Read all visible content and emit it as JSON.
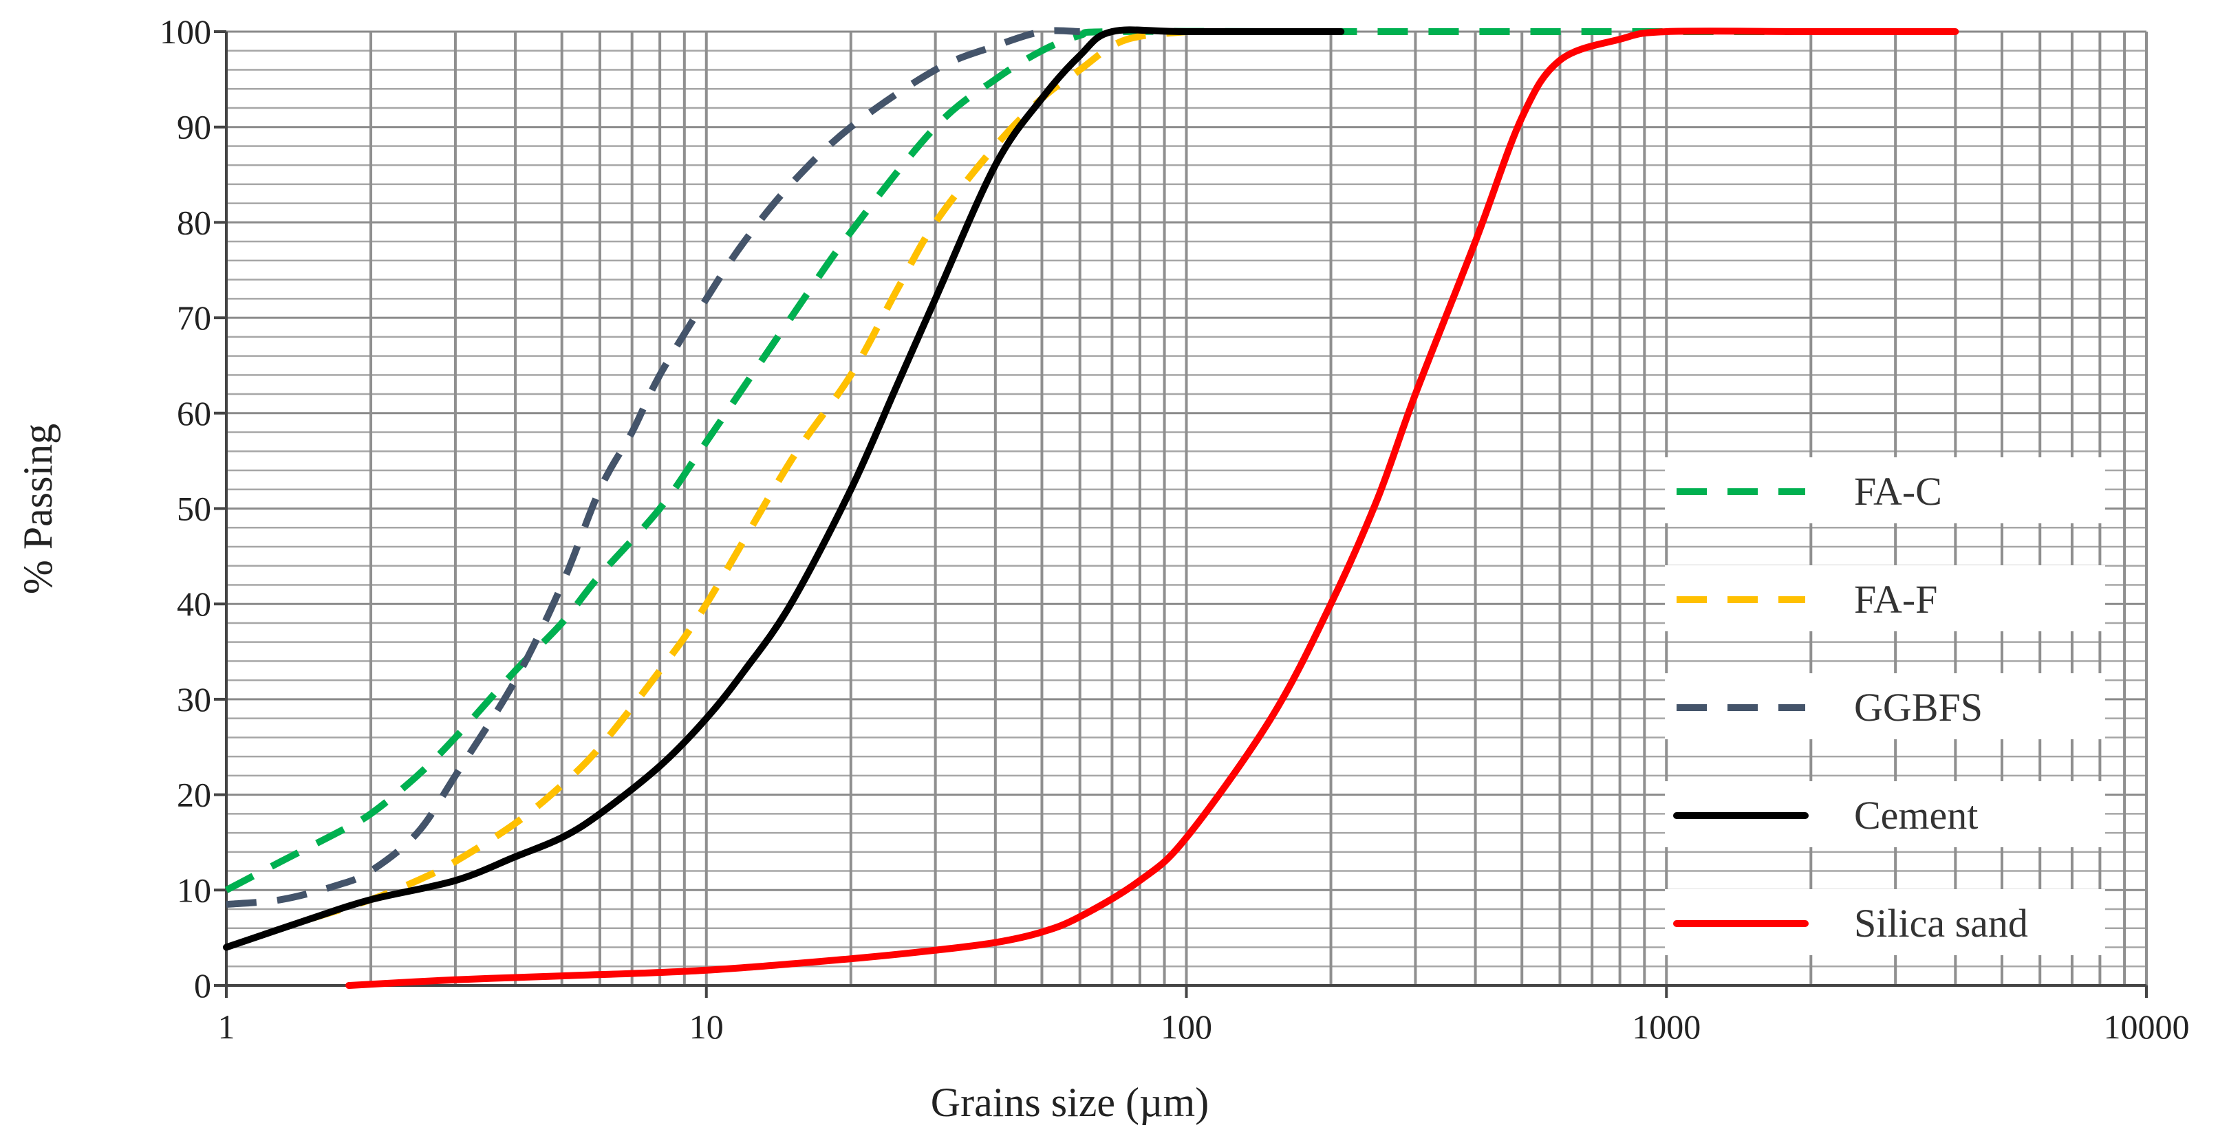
{
  "chart_data": {
    "type": "line",
    "title": "",
    "xlabel": "Grains size (µm)",
    "ylabel": "% Passing",
    "x_scale": "log",
    "xlim": [
      1,
      10000
    ],
    "ylim": [
      0,
      100
    ],
    "grid": true,
    "legend_position": "right",
    "x_ticks": [
      "1",
      "10",
      "100",
      "1000",
      "10000"
    ],
    "y_ticks": [
      "0",
      "10",
      "20",
      "30",
      "40",
      "50",
      "60",
      "70",
      "80",
      "90",
      "100"
    ],
    "series": [
      {
        "name": "FA-C",
        "color": "#00b050",
        "style": "dashed",
        "points": [
          [
            1,
            10
          ],
          [
            1.3,
            13
          ],
          [
            1.7,
            16
          ],
          [
            2,
            18
          ],
          [
            2.5,
            22
          ],
          [
            3,
            26
          ],
          [
            4,
            33
          ],
          [
            5,
            38
          ],
          [
            6,
            43
          ],
          [
            8,
            50
          ],
          [
            10,
            57
          ],
          [
            15,
            70
          ],
          [
            20,
            79
          ],
          [
            30,
            90
          ],
          [
            40,
            95
          ],
          [
            50,
            98
          ],
          [
            60,
            99.6
          ],
          [
            70,
            100
          ],
          [
            200,
            100
          ],
          [
            1000,
            100
          ],
          [
            2000,
            100
          ]
        ]
      },
      {
        "name": "FA-F",
        "color": "#ffc000",
        "style": "dashed",
        "points": [
          [
            1.5,
            7
          ],
          [
            2,
            9
          ],
          [
            2.5,
            11
          ],
          [
            3,
            13
          ],
          [
            4,
            17
          ],
          [
            5,
            21
          ],
          [
            6,
            25
          ],
          [
            8,
            33
          ],
          [
            10,
            40
          ],
          [
            15,
            55
          ],
          [
            20,
            64
          ],
          [
            25,
            73
          ],
          [
            30,
            80
          ],
          [
            40,
            88
          ],
          [
            50,
            93
          ],
          [
            60,
            96
          ],
          [
            70,
            98.5
          ],
          [
            80,
            99.5
          ],
          [
            100,
            100
          ]
        ]
      },
      {
        "name": "GGBFS",
        "color": "#44546a",
        "style": "dashed",
        "points": [
          [
            1,
            8.5
          ],
          [
            1.3,
            9
          ],
          [
            1.7,
            10.5
          ],
          [
            2,
            12
          ],
          [
            2.5,
            16
          ],
          [
            3,
            22
          ],
          [
            4,
            32
          ],
          [
            5,
            42
          ],
          [
            6,
            52
          ],
          [
            7,
            58
          ],
          [
            8,
            64
          ],
          [
            10,
            72
          ],
          [
            12,
            78
          ],
          [
            15,
            84
          ],
          [
            20,
            90
          ],
          [
            30,
            96
          ],
          [
            40,
            98.5
          ],
          [
            50,
            100
          ],
          [
            60,
            100
          ]
        ]
      },
      {
        "name": "Cement",
        "color": "#000000",
        "style": "solid",
        "points": [
          [
            1,
            4
          ],
          [
            1.5,
            7
          ],
          [
            2,
            9
          ],
          [
            3,
            11
          ],
          [
            4,
            13.5
          ],
          [
            5,
            15.5
          ],
          [
            6,
            18
          ],
          [
            8,
            23
          ],
          [
            10,
            28
          ],
          [
            12,
            33
          ],
          [
            15,
            40
          ],
          [
            20,
            52
          ],
          [
            25,
            63
          ],
          [
            30,
            72
          ],
          [
            40,
            86
          ],
          [
            50,
            93
          ],
          [
            60,
            97.5
          ],
          [
            70,
            100
          ],
          [
            100,
            100
          ],
          [
            210,
            100
          ]
        ]
      },
      {
        "name": "Silica sand",
        "color": "#ff0000",
        "style": "solid",
        "points": [
          [
            1.8,
            0
          ],
          [
            3,
            0.6
          ],
          [
            5,
            1
          ],
          [
            10,
            1.6
          ],
          [
            20,
            2.8
          ],
          [
            30,
            3.7
          ],
          [
            40,
            4.5
          ],
          [
            50,
            5.6
          ],
          [
            60,
            7.2
          ],
          [
            80,
            11
          ],
          [
            100,
            15.5
          ],
          [
            150,
            28
          ],
          [
            200,
            40
          ],
          [
            250,
            51
          ],
          [
            300,
            62
          ],
          [
            400,
            78
          ],
          [
            500,
            91
          ],
          [
            600,
            97
          ],
          [
            800,
            99.2
          ],
          [
            1000,
            100
          ],
          [
            2000,
            100
          ],
          [
            4000,
            100
          ]
        ]
      }
    ]
  }
}
